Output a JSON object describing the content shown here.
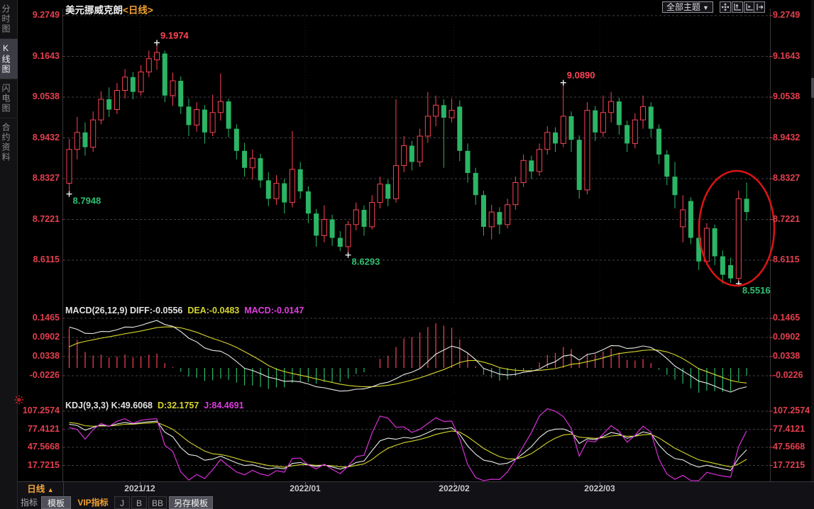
{
  "window": {
    "title_symbol": "美元挪威克朗",
    "title_period": "<日线>"
  },
  "sidebar": {
    "items": [
      {
        "label": "分时图",
        "active": false
      },
      {
        "label": "K线图",
        "active": true
      },
      {
        "label": "闪电图",
        "active": false
      },
      {
        "label": "合约资料",
        "active": false
      }
    ]
  },
  "toolbar": {
    "theme_dropdown_label": "全部主题",
    "dropdown_arrow": "▼",
    "icons": [
      "crosshair-icon",
      "axis-zoom-icon",
      "axis-shift-icon",
      "collapse-panel-icon"
    ],
    "alert_icon": "alert-icon"
  },
  "macd": {
    "title": "MACD(26,12,9)",
    "diff_label": "DIFF:-0.0556",
    "dea_label": "DEA:-0.0483",
    "macd_label": "MACD:-0.0147"
  },
  "kdj": {
    "title": "KDJ(9,3,3)",
    "k_label": "K:49.6068",
    "d_label": "D:32.1757",
    "j_label": "J:84.4691"
  },
  "xaxis": {
    "period_button": "日线",
    "period_arrow": "▲",
    "dates": [
      "2021/12",
      "2022/01",
      "2022/02",
      "2022/03"
    ]
  },
  "bottom_bar": {
    "items": [
      {
        "label": "指标",
        "style": "plain"
      },
      {
        "label": "模板",
        "style": "chip"
      },
      {
        "label": "VIP指标",
        "style": "vip"
      },
      {
        "label": "J",
        "style": "boxed"
      },
      {
        "label": "B",
        "style": "boxed"
      },
      {
        "label": "BB",
        "style": "boxed"
      },
      {
        "label": "另存模板",
        "style": "chip"
      }
    ]
  },
  "colors": {
    "up_red": "#fa4254",
    "down_green": "#2bb565",
    "axis_label_red": "#e2404e",
    "accent_orange": "#f0a030",
    "line_white": "#eaeaea",
    "line_yellow": "#d6d62e",
    "macd_magenta": "#e03ce0",
    "j_magenta": "#d830d8",
    "annotation_red": "#ff4455",
    "annotation_green": "#2fbf71",
    "ellipse_red": "#dd1414"
  },
  "chart_data": {
    "type": "candlestick",
    "title": "美元挪威克朗 日线",
    "panels": {
      "main": {
        "y_labels": [
          "9.2749",
          "9.1643",
          "9.0538",
          "8.9432",
          "8.8327",
          "8.7221",
          "8.6115"
        ]
      },
      "macd": {
        "params": "MACD(26,12,9)",
        "y_labels": [
          "0.1465",
          "0.0902",
          "0.0338",
          "-0.0226"
        ],
        "values": {
          "DIFF": -0.0556,
          "DEA": -0.0483,
          "MACD": -0.0147
        }
      },
      "kdj": {
        "params": "KDJ(9,3,3)",
        "y_labels": [
          "107.2574",
          "77.4121",
          "47.5668",
          "17.7215"
        ],
        "values": {
          "K": 49.6068,
          "D": 32.1757,
          "J": 84.4691
        }
      }
    },
    "x_labels": [
      "2021/12",
      "2022/01",
      "2022/02",
      "2022/03"
    ],
    "ohlc": [
      [
        8.82,
        8.94,
        8.7948,
        8.912
      ],
      [
        8.912,
        9.0,
        8.885,
        8.958
      ],
      [
        8.958,
        8.985,
        8.895,
        8.918
      ],
      [
        8.918,
        9.015,
        8.905,
        8.992
      ],
      [
        8.992,
        9.07,
        8.98,
        9.048
      ],
      [
        9.048,
        9.08,
        9.0,
        9.02
      ],
      [
        9.02,
        9.092,
        9.008,
        9.072
      ],
      [
        9.072,
        9.13,
        9.05,
        9.108
      ],
      [
        9.108,
        9.122,
        9.048,
        9.068
      ],
      [
        9.068,
        9.14,
        9.058,
        9.122
      ],
      [
        9.122,
        9.18,
        9.108,
        9.158
      ],
      [
        9.155,
        9.1974,
        9.128,
        9.175
      ],
      [
        9.172,
        9.18,
        9.04,
        9.058
      ],
      [
        9.058,
        9.12,
        9.03,
        9.098
      ],
      [
        9.098,
        9.11,
        9.008,
        9.028
      ],
      [
        9.028,
        9.05,
        8.948,
        8.978
      ],
      [
        8.978,
        9.04,
        8.96,
        9.02
      ],
      [
        9.02,
        9.032,
        8.928,
        8.958
      ],
      [
        8.958,
        9.06,
        8.948,
        9.012
      ],
      [
        9.012,
        9.118,
        8.99,
        9.042
      ],
      [
        9.042,
        9.05,
        8.945,
        8.968
      ],
      [
        8.968,
        8.98,
        8.885,
        8.908
      ],
      [
        8.908,
        8.93,
        8.838,
        8.862
      ],
      [
        8.862,
        8.912,
        8.83,
        8.888
      ],
      [
        8.888,
        8.9,
        8.808,
        8.828
      ],
      [
        8.828,
        8.85,
        8.758,
        8.778
      ],
      [
        8.778,
        8.842,
        8.762,
        8.82
      ],
      [
        8.82,
        8.832,
        8.738,
        8.768
      ],
      [
        8.768,
        8.962,
        8.755,
        8.858
      ],
      [
        8.858,
        8.878,
        8.778,
        8.798
      ],
      [
        8.798,
        8.812,
        8.712,
        8.738
      ],
      [
        8.738,
        8.75,
        8.648,
        8.678
      ],
      [
        8.678,
        8.76,
        8.66,
        8.722
      ],
      [
        8.722,
        8.735,
        8.65,
        8.672
      ],
      [
        8.672,
        8.69,
        8.636,
        8.648
      ],
      [
        8.648,
        8.718,
        8.6293,
        8.708
      ],
      [
        8.708,
        8.768,
        8.692,
        8.748
      ],
      [
        8.748,
        8.76,
        8.678,
        8.702
      ],
      [
        8.702,
        8.788,
        8.695,
        8.768
      ],
      [
        8.768,
        8.838,
        8.752,
        8.818
      ],
      [
        8.818,
        8.83,
        8.758,
        8.778
      ],
      [
        8.778,
        9.048,
        8.768,
        8.868
      ],
      [
        8.868,
        8.948,
        8.85,
        8.922
      ],
      [
        8.922,
        8.935,
        8.855,
        8.878
      ],
      [
        8.878,
        8.968,
        8.865,
        8.948
      ],
      [
        8.948,
        9.068,
        8.93,
        9.002
      ],
      [
        9.002,
        9.058,
        8.975,
        9.032
      ],
      [
        9.032,
        9.048,
        8.862,
        8.998
      ],
      [
        8.998,
        9.05,
        8.985,
        9.018
      ],
      [
        9.028,
        9.045,
        8.88,
        8.908
      ],
      [
        8.908,
        8.928,
        8.822,
        8.848
      ],
      [
        8.848,
        8.862,
        8.762,
        8.788
      ],
      [
        8.788,
        8.8,
        8.678,
        8.702
      ],
      [
        8.702,
        8.762,
        8.668,
        8.742
      ],
      [
        8.742,
        8.755,
        8.682,
        8.708
      ],
      [
        8.708,
        8.778,
        8.698,
        8.762
      ],
      [
        8.762,
        8.838,
        8.748,
        8.822
      ],
      [
        8.822,
        8.898,
        8.81,
        8.882
      ],
      [
        8.882,
        8.895,
        8.832,
        8.852
      ],
      [
        8.852,
        8.928,
        8.84,
        8.912
      ],
      [
        8.912,
        8.975,
        8.898,
        8.958
      ],
      [
        8.958,
        8.972,
        8.905,
        8.928
      ],
      [
        8.928,
        9.089,
        8.918,
        9.002
      ],
      [
        9.002,
        9.015,
        8.905,
        8.938
      ],
      [
        8.938,
        8.95,
        8.778,
        8.802
      ],
      [
        8.802,
        9.04,
        8.79,
        9.018
      ],
      [
        9.018,
        9.03,
        8.935,
        8.958
      ],
      [
        8.958,
        9.058,
        8.945,
        9.012
      ],
      [
        9.012,
        9.068,
        8.985,
        9.042
      ],
      [
        9.042,
        9.052,
        8.952,
        8.978
      ],
      [
        8.978,
        8.99,
        8.905,
        8.928
      ],
      [
        8.928,
        9.01,
        8.915,
        8.992
      ],
      [
        8.992,
        9.058,
        8.968,
        9.028
      ],
      [
        9.028,
        9.04,
        8.945,
        8.968
      ],
      [
        8.968,
        8.98,
        8.872,
        8.898
      ],
      [
        8.898,
        8.91,
        8.815,
        8.838
      ],
      [
        8.838,
        8.878,
        8.752,
        8.788
      ],
      [
        8.702,
        8.788,
        8.66,
        8.748
      ],
      [
        8.772,
        8.782,
        8.655,
        8.672
      ],
      [
        8.672,
        8.7,
        8.585,
        8.608
      ],
      [
        8.608,
        8.712,
        8.598,
        8.698
      ],
      [
        8.698,
        8.708,
        8.598,
        8.622
      ],
      [
        8.622,
        8.638,
        8.548,
        8.572
      ],
      [
        8.598,
        8.618,
        8.55,
        8.562
      ],
      [
        8.562,
        8.8,
        8.5516,
        8.778
      ],
      [
        8.778,
        8.822,
        8.718,
        8.742
      ]
    ],
    "annotations": {
      "price_labels": [
        {
          "text": "9.1974",
          "color": "red",
          "candle": 11,
          "type": "high"
        },
        {
          "text": "9.0890",
          "color": "red",
          "candle": 62,
          "type": "high"
        },
        {
          "text": "8.7948",
          "color": "green",
          "candle": 0,
          "type": "low"
        },
        {
          "text": "8.6293",
          "color": "green",
          "candle": 35,
          "type": "low"
        },
        {
          "text": "8.5516",
          "color": "green",
          "candle": 84,
          "type": "low"
        }
      ],
      "ellipse_annotation": {
        "around_candles": [
          78,
          85
        ]
      }
    }
  }
}
